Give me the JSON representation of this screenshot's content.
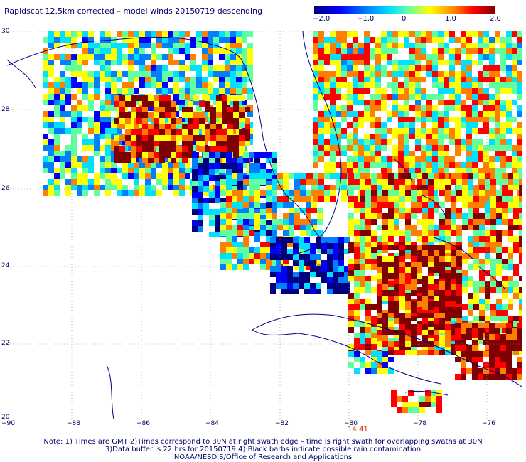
{
  "header": {
    "title": "Rapidscat 12.5km corrected – model winds 20150719 descending"
  },
  "colorbar": {
    "ticks": [
      "−2.0",
      "−1.0",
      "0",
      "1.0",
      "2.0"
    ],
    "colors": [
      "#00007f",
      "#0000ff",
      "#0080ff",
      "#00e0ff",
      "#60ff9f",
      "#ffff00",
      "#ff8000",
      "#ff0000",
      "#7f0000"
    ]
  },
  "axes": {
    "lat_labels": [
      "30",
      "28",
      "26",
      "24",
      "22",
      "20"
    ],
    "lon_labels": [
      "−90",
      "−88",
      "−86",
      "−84",
      "−82",
      "−80",
      "−78",
      "−76"
    ]
  },
  "time_label": "14:41",
  "notes": [
    "Note: 1) Times are GMT 2)Times correspond to 30N at right swath edge – time is right swath for overlapping swaths at 30N",
    "3)Data buffer is 22 hrs for 20150719 4) Black barbs indicate possible rain contamination",
    "NOAA/NESDIS/Office of Research and Applications"
  ]
}
